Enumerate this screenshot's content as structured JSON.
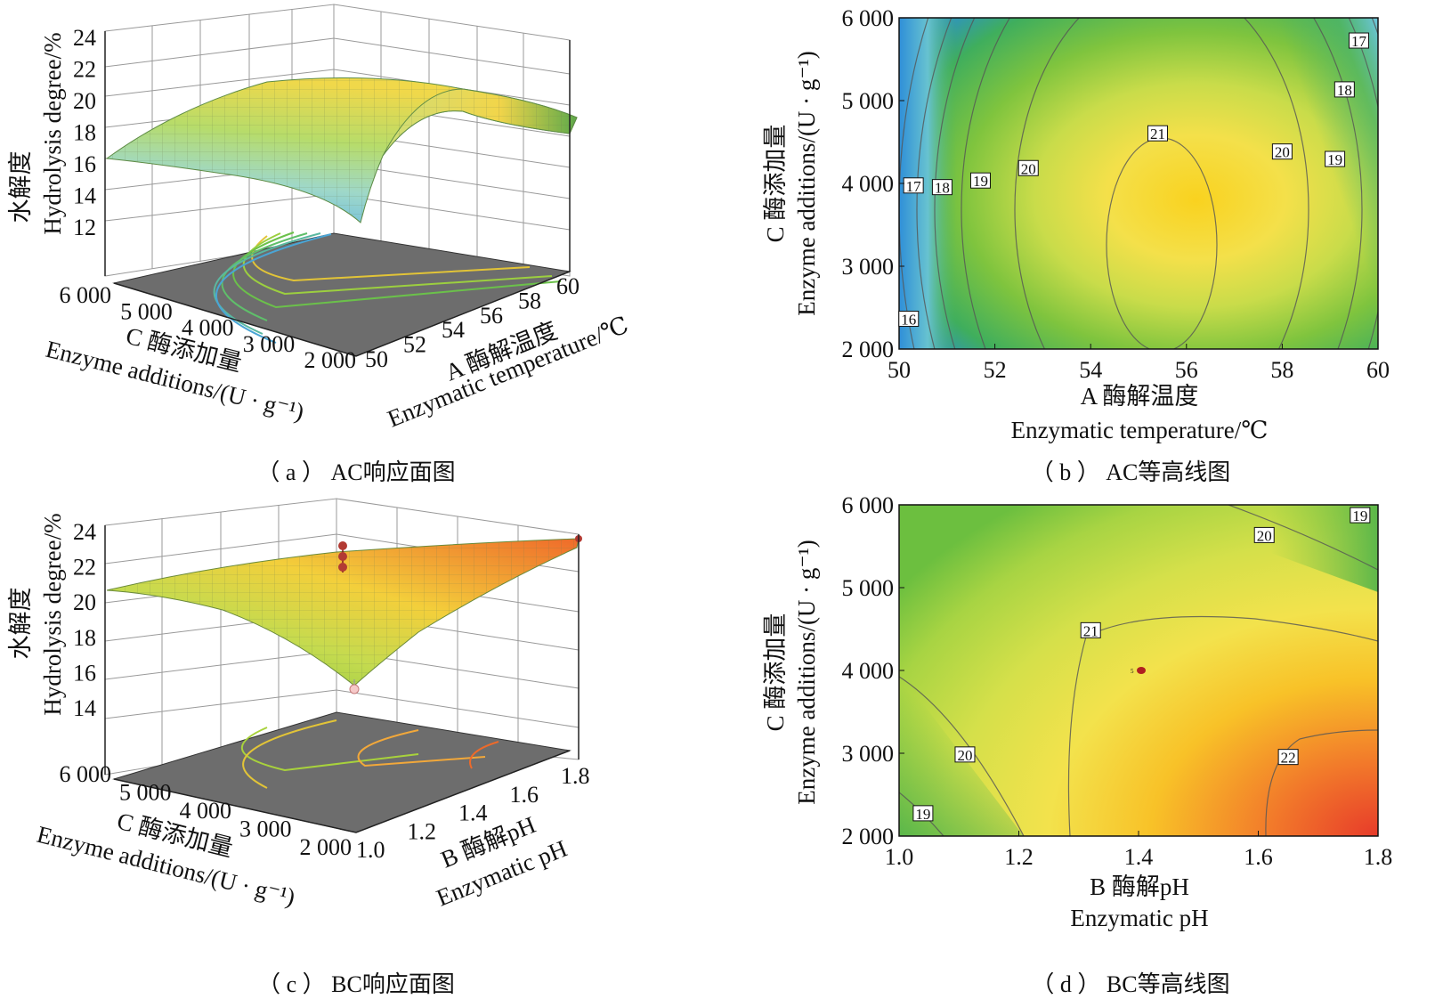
{
  "panels": {
    "a": {
      "caption": "（ a ） AC响应面图",
      "chart_data": {
        "type": "surface3d",
        "zlabel_cn": "水解度",
        "zlabel_en": "Hydrolysis degree/%",
        "z_ticks": [
          "24",
          "22",
          "20",
          "18",
          "16",
          "14",
          "12"
        ],
        "x_ticks": [
          "50",
          "52",
          "54",
          "56",
          "58",
          "60"
        ],
        "y_ticks": [
          "6 000",
          "5 000",
          "4 000",
          "3 000",
          "2 000"
        ],
        "xlabel_cn": "A 酶解温度",
        "xlabel_en": "Enzymatic temperature/℃",
        "ylabel_cn": "C 酶添加量",
        "ylabel_en": "Enzyme additions/(U · g⁻¹)",
        "zlim": [
          12,
          24
        ]
      }
    },
    "b": {
      "caption": "（ b ） AC等高线图",
      "chart_data": {
        "type": "contour",
        "x_ticks": [
          "50",
          "52",
          "54",
          "56",
          "58",
          "60"
        ],
        "y_ticks": [
          "6 000",
          "5 000",
          "4 000",
          "3 000",
          "2 000"
        ],
        "xlim": [
          50,
          60
        ],
        "ylim": [
          2000,
          6000
        ],
        "xlabel_cn": "A 酶解温度",
        "xlabel_en": "Enzymatic temperature/℃",
        "ylabel_cn": "C 酶添加量",
        "ylabel_en": "Enzyme additions/(U · g⁻¹)",
        "contour_labels": [
          {
            "text": "17",
            "x": 50.3,
            "y": 3970
          },
          {
            "text": "18",
            "x": 50.9,
            "y": 3950
          },
          {
            "text": "19",
            "x": 51.7,
            "y": 4030
          },
          {
            "text": "20",
            "x": 52.7,
            "y": 4180
          },
          {
            "text": "21",
            "x": 55.4,
            "y": 4600
          },
          {
            "text": "20",
            "x": 58.0,
            "y": 4380
          },
          {
            "text": "19",
            "x": 59.1,
            "y": 4290
          },
          {
            "text": "18",
            "x": 59.3,
            "y": 5130
          },
          {
            "text": "17",
            "x": 59.6,
            "y": 5720
          },
          {
            "text": "16",
            "x": 50.2,
            "y": 2360
          }
        ]
      }
    },
    "c": {
      "caption": "（ c ） BC响应面图",
      "chart_data": {
        "type": "surface3d",
        "zlabel_cn": "水解度",
        "zlabel_en": "Hydrolysis degree/%",
        "z_ticks": [
          "24",
          "22",
          "20",
          "18",
          "16",
          "14"
        ],
        "x_ticks": [
          "1.0",
          "1.2",
          "1.4",
          "1.6",
          "1.8"
        ],
        "y_ticks": [
          "6 000",
          "5 000",
          "4 000",
          "3 000",
          "2 000"
        ],
        "xlabel_cn": "B 酶解pH",
        "xlabel_en": "Enzymatic pH",
        "ylabel_cn": "C 酶添加量",
        "ylabel_en": "Enzyme additions/(U · g⁻¹)",
        "zlim": [
          14,
          24
        ]
      }
    },
    "d": {
      "caption": "（ d ） BC等高线图",
      "chart_data": {
        "type": "contour",
        "x_ticks": [
          "1.0",
          "1.2",
          "1.4",
          "1.6",
          "1.8"
        ],
        "y_ticks": [
          "6 000",
          "5 000",
          "4 000",
          "3 000",
          "2 000"
        ],
        "xlim": [
          1.0,
          1.8
        ],
        "ylim": [
          2000,
          6000
        ],
        "xlabel_cn": "B 酶解pH",
        "xlabel_en": "Enzymatic pH",
        "ylabel_cn": "C 酶添加量",
        "ylabel_en": "Enzyme additions/(U · g⁻¹)",
        "center_point": {
          "x": 1.4,
          "y": 4000,
          "label": "5"
        },
        "contour_labels": [
          {
            "text": "19",
            "x": 1.77,
            "y": 5870
          },
          {
            "text": "20",
            "x": 1.61,
            "y": 5630
          },
          {
            "text": "21",
            "x": 1.32,
            "y": 4480
          },
          {
            "text": "20",
            "x": 1.11,
            "y": 2980
          },
          {
            "text": "22",
            "x": 1.65,
            "y": 2950
          },
          {
            "text": "19",
            "x": 1.04,
            "y": 2270
          }
        ]
      }
    }
  }
}
